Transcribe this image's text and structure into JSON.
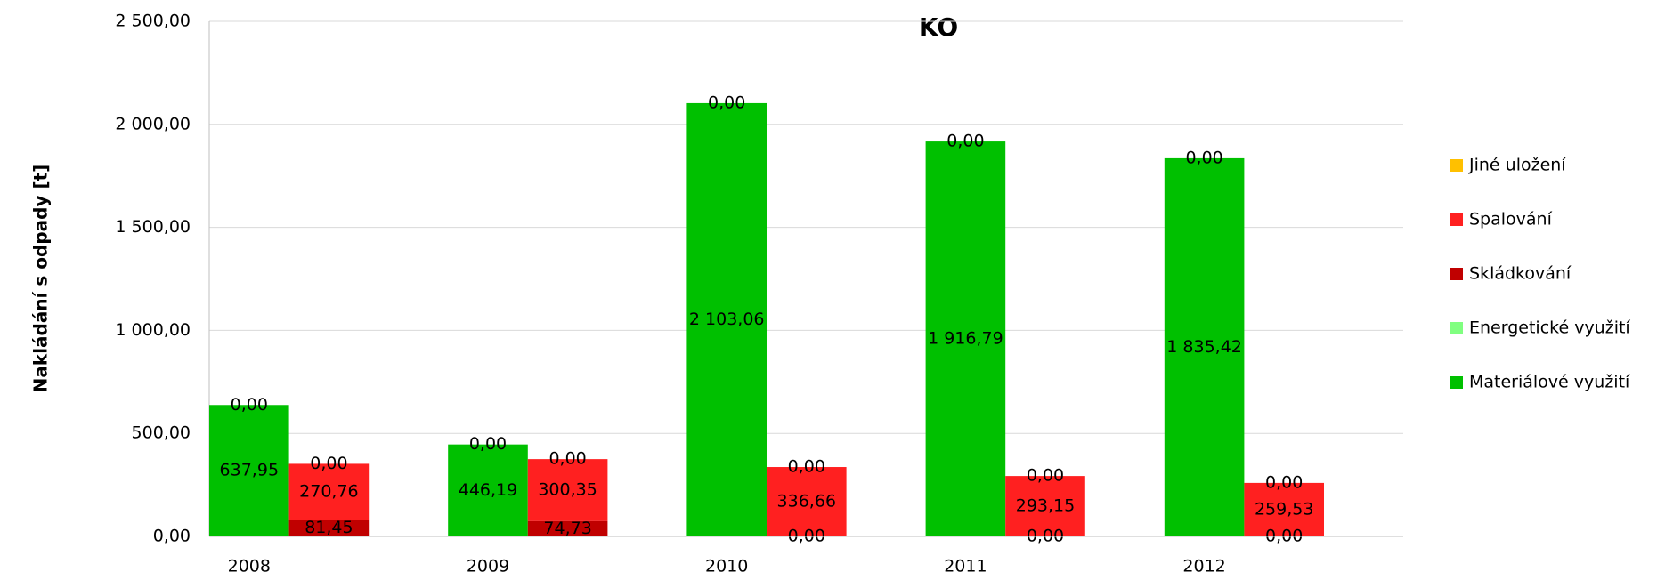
{
  "chart_data": {
    "type": "stacked-grouped-bar",
    "title": "KO",
    "y_label": "Nakládání s odpady [t]",
    "categories": [
      "2008",
      "2009",
      "2010",
      "2011",
      "2012"
    ],
    "ylim": [
      0,
      2500
    ],
    "yticks": [
      {
        "value": 0,
        "label": "0,00"
      },
      {
        "value": 500,
        "label": "500,00"
      },
      {
        "value": 1000,
        "label": "1 000,00"
      },
      {
        "value": 1500,
        "label": "1 500,00"
      },
      {
        "value": 2000,
        "label": "2 000,00"
      },
      {
        "value": 2500,
        "label": "2 500,00"
      }
    ],
    "grid": true,
    "legend": "right",
    "series": [
      {
        "name": "Materiálové využití",
        "color": "#00c000",
        "stack": 1,
        "values": [
          637.95,
          446.19,
          2103.06,
          1916.79,
          1835.42
        ],
        "value_labels": [
          "637,95",
          "446,19",
          "2 103,06",
          "1 916,79",
          "1 835,42"
        ]
      },
      {
        "name": "Energetické využití",
        "color": "#80ff80",
        "stack": 1,
        "values": [
          0,
          0,
          0,
          0,
          0
        ],
        "value_labels": [
          "0,00",
          "0,00",
          "0,00",
          "0,00",
          "0,00"
        ]
      },
      {
        "name": "Skládkování",
        "color": "#c00000",
        "stack": 2,
        "values": [
          81.45,
          74.73,
          0,
          0,
          0
        ],
        "value_labels": [
          "81,45",
          "74,73",
          "0,00",
          "0,00",
          "0,00"
        ]
      },
      {
        "name": "Spalování",
        "color": "#ff2020",
        "stack": 2,
        "values": [
          270.76,
          300.35,
          336.66,
          293.15,
          259.53
        ],
        "value_labels": [
          "270,76",
          "300,35",
          "336,66",
          "293,15",
          "259,53"
        ]
      },
      {
        "name": "Jiné uložení",
        "color": "#ffc000",
        "stack": 2,
        "values": [
          0,
          0,
          0,
          0,
          0
        ],
        "value_labels": [
          "0,00",
          "0,00",
          "0,00",
          "0,00",
          "0,00"
        ]
      }
    ]
  }
}
